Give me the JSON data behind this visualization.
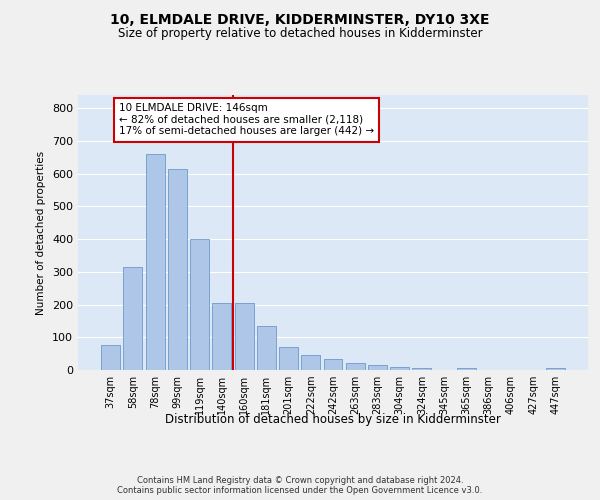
{
  "title": "10, ELMDALE DRIVE, KIDDERMINSTER, DY10 3XE",
  "subtitle": "Size of property relative to detached houses in Kidderminster",
  "xlabel": "Distribution of detached houses by size in Kidderminster",
  "ylabel": "Number of detached properties",
  "categories": [
    "37sqm",
    "58sqm",
    "78sqm",
    "99sqm",
    "119sqm",
    "140sqm",
    "160sqm",
    "181sqm",
    "201sqm",
    "222sqm",
    "242sqm",
    "263sqm",
    "283sqm",
    "304sqm",
    "324sqm",
    "345sqm",
    "365sqm",
    "386sqm",
    "406sqm",
    "427sqm",
    "447sqm"
  ],
  "values": [
    75,
    315,
    660,
    615,
    400,
    205,
    205,
    135,
    70,
    45,
    35,
    20,
    15,
    10,
    5,
    0,
    5,
    0,
    0,
    0,
    5
  ],
  "bar_color": "#aec6e8",
  "bar_edge_color": "#5a8fc2",
  "redline_index": 5.5,
  "annotation_text": "10 ELMDALE DRIVE: 146sqm\n← 82% of detached houses are smaller (2,118)\n17% of semi-detached houses are larger (442) →",
  "annotation_box_color": "#ffffff",
  "annotation_box_edgecolor": "#cc0000",
  "redline_color": "#cc0000",
  "ylim": [
    0,
    840
  ],
  "yticks": [
    0,
    100,
    200,
    300,
    400,
    500,
    600,
    700,
    800
  ],
  "footer": "Contains HM Land Registry data © Crown copyright and database right 2024.\nContains public sector information licensed under the Open Government Licence v3.0.",
  "background_color": "#dce8f5",
  "fig_background": "#f0f0f0",
  "grid_color": "#ffffff"
}
